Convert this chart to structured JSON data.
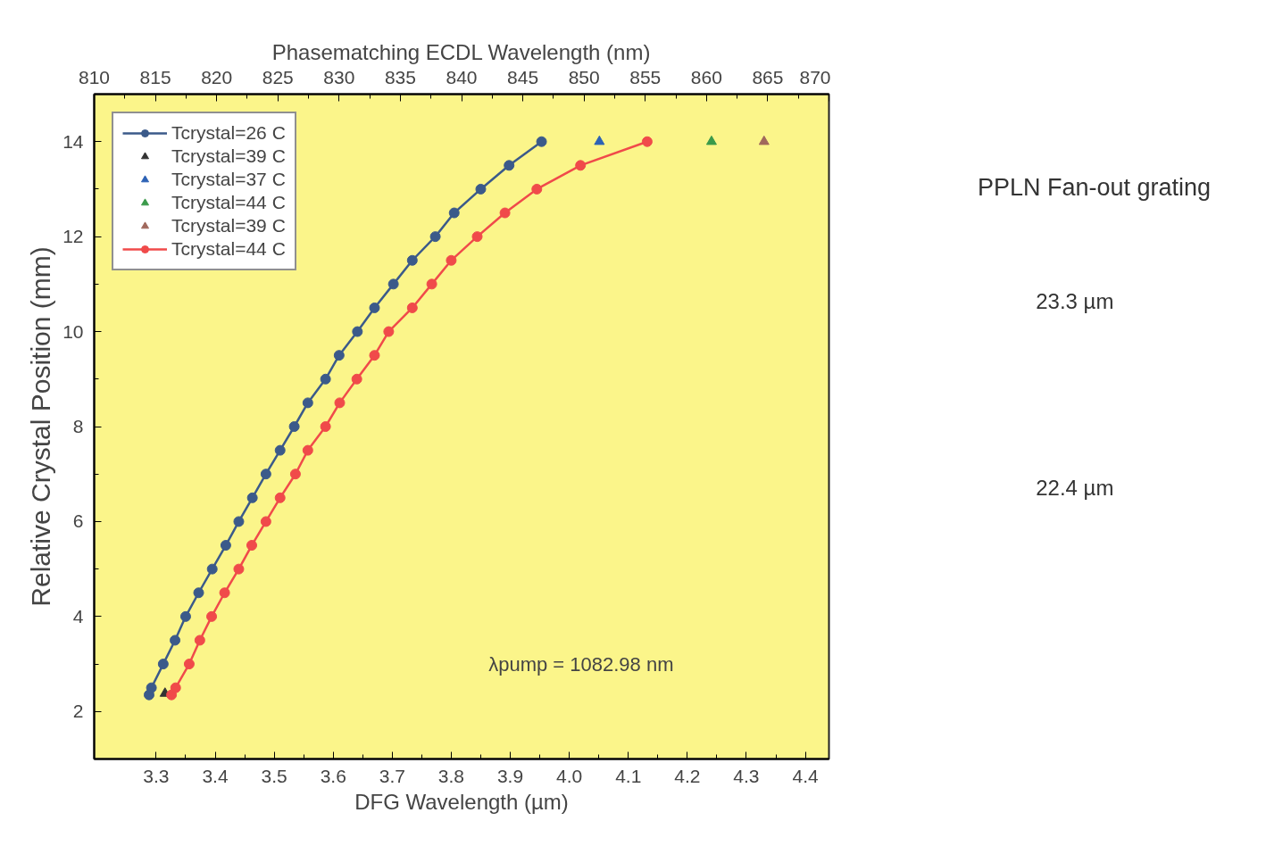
{
  "chart_data": {
    "type": "line",
    "xlabel": "DFG Wavelength (µm)",
    "x2label": "Phasematching ECDL Wavelength (nm)",
    "ylabel": "Relative Crystal Position (mm)",
    "xlim": [
      3.195,
      4.44
    ],
    "xticks": [
      3.3,
      3.4,
      3.5,
      3.6,
      3.7,
      3.8,
      3.9,
      {
        "value": 4.0,
        "label": "4.0"
      },
      4.1,
      4.2,
      4.3,
      4.4
    ],
    "x2lim": [
      810,
      870
    ],
    "x2ticks": [
      810,
      815,
      820,
      825,
      830,
      835,
      840,
      845,
      850,
      855,
      860,
      865,
      870
    ],
    "ylim": [
      1,
      15
    ],
    "yticks": [
      2,
      4,
      6,
      8,
      10,
      12,
      14
    ],
    "grid": false,
    "legend": "top left",
    "series": [
      {
        "name": "Tcrystal=26 C",
        "marker": "circle",
        "color": "#3b5a8a",
        "x": [
          3.288,
          3.292,
          3.312,
          3.332,
          3.35,
          3.372,
          3.395,
          3.418,
          3.44,
          3.463,
          3.486,
          3.51,
          3.534,
          3.557,
          3.587,
          3.61,
          3.641,
          3.67,
          3.702,
          3.734,
          3.773,
          3.805,
          3.85,
          3.898,
          3.953
        ],
        "values": [
          2.35,
          2.5,
          3.0,
          3.5,
          4.0,
          4.5,
          5.0,
          5.5,
          6.0,
          6.5,
          7.0,
          7.5,
          8.0,
          8.5,
          9.0,
          9.5,
          10.0,
          10.5,
          11.0,
          11.5,
          12.0,
          12.5,
          13.0,
          13.5,
          14.0
        ]
      },
      {
        "name": "Tcrystal=39 C",
        "type": "scatter",
        "marker": "triangle",
        "color": "#333333",
        "x": [
          3.315
        ],
        "values": [
          2.38
        ]
      },
      {
        "name": "Tcrystal=37 C",
        "type": "scatter",
        "marker": "triangle",
        "color": "#2d62b5",
        "x": [
          4.051
        ],
        "values": [
          14.0
        ]
      },
      {
        "name": "Tcrystal=44 C",
        "type": "scatter",
        "marker": "triangle",
        "color": "#3a9a4a",
        "x": [
          4.241
        ],
        "values": [
          14.0
        ]
      },
      {
        "name": "Tcrystal=39 C",
        "type": "scatter",
        "marker": "triangle",
        "color": "#a0685c",
        "x": [
          4.33
        ],
        "values": [
          14.0
        ]
      },
      {
        "name": "Tcrystal=44 C",
        "marker": "circle",
        "color": "#f04a4a",
        "x": [
          3.326,
          3.333,
          3.356,
          3.374,
          3.394,
          3.416,
          3.44,
          3.462,
          3.486,
          3.51,
          3.536,
          3.557,
          3.587,
          3.611,
          3.64,
          3.67,
          3.694,
          3.734,
          3.767,
          3.8,
          3.844,
          3.891,
          3.945,
          4.019,
          4.132
        ],
        "values": [
          2.35,
          2.5,
          3.0,
          3.5,
          4.0,
          4.5,
          5.0,
          5.5,
          6.0,
          6.5,
          7.0,
          7.5,
          8.0,
          8.5,
          9.0,
          9.5,
          10.0,
          10.5,
          11.0,
          11.5,
          12.0,
          12.5,
          13.0,
          13.5,
          14.0
        ]
      }
    ],
    "annotations": [
      "λpump = 1082.98 nm",
      "PPLN  Fan-out  grating",
      "23.3 µm",
      "22.4 µm"
    ]
  }
}
